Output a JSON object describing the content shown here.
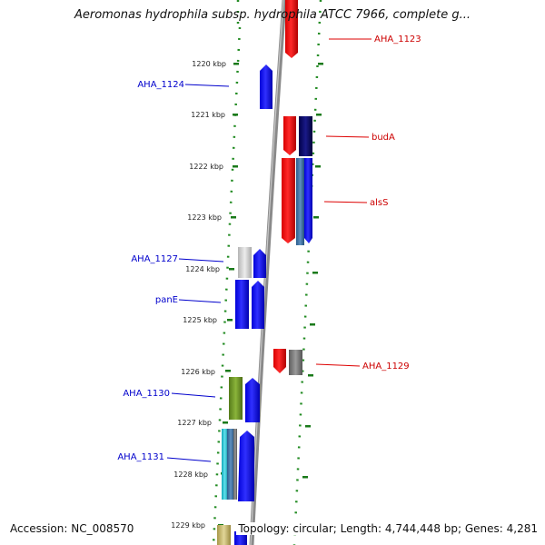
{
  "title": "Aeromonas hydrophila subsp. hydrophila ATCC 7966, complete g...",
  "accession": "Accession: NC_008570",
  "summary": "Topology: circular; Length: 4,744,448 bp; Genes: 4,281",
  "ticks": [
    "1220 kbp",
    "1221 kbp",
    "1222 kbp",
    "1223 kbp",
    "1224 kbp",
    "1225 kbp",
    "1226 kbp",
    "1227 kbp",
    "1228 kbp",
    "1229 kbp"
  ],
  "labels": {
    "aha_1123": "AHA_1123",
    "aha_1124": "AHA_1124",
    "buda": "budA",
    "alss": "alsS",
    "aha_1127": "AHA_1127",
    "pane": "panE",
    "aha_1129": "AHA_1129",
    "aha_1130": "AHA_1130",
    "aha_1131": "AHA_1131"
  },
  "colors": {
    "forward_strand": "#0000ff",
    "reverse_strand": "#ff0000",
    "dark_blue": "#000066",
    "steel_blue": "#336699",
    "gray": "#777777",
    "light_gray": "#cccccc",
    "olive": "#6b8e23",
    "cyan": "#19bfd0",
    "khaki": "#c8b870",
    "backbone": "#8a8a8a",
    "dots": "#228b22"
  }
}
